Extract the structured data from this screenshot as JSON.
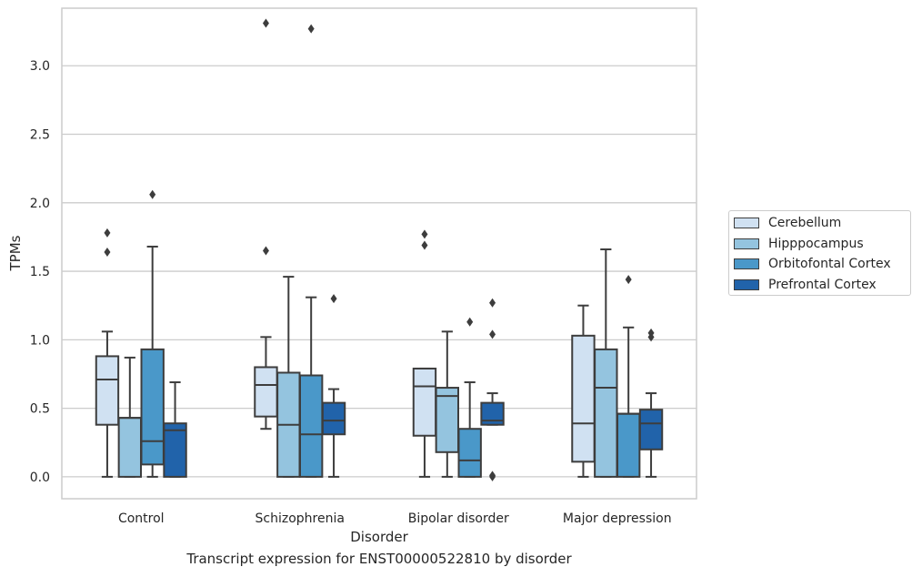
{
  "chart_data": {
    "type": "box",
    "xlabel": "Disorder",
    "ylabel": "TPMs",
    "caption": "Transcript expression for ENST00000522810 by disorder",
    "ylim": [
      -0.16,
      3.42
    ],
    "yticks": [
      "0.0",
      "0.5",
      "1.0",
      "1.5",
      "2.0",
      "2.5",
      "3.0"
    ],
    "categories": [
      "Control",
      "Schizophrenia",
      "Bipolar disorder",
      "Major depression"
    ],
    "grid": true,
    "legend_position": "right",
    "series": [
      {
        "name": "Cerebellum",
        "color": "#d0e1f2",
        "boxes": [
          {
            "whisker_low": 0.0,
            "q1": 0.38,
            "median": 0.71,
            "q3": 0.88,
            "whisker_high": 1.06,
            "outliers": [
              1.64,
              1.78
            ]
          },
          {
            "whisker_low": 0.35,
            "q1": 0.44,
            "median": 0.67,
            "q3": 0.8,
            "whisker_high": 1.02,
            "outliers": [
              1.65,
              3.31
            ]
          },
          {
            "whisker_low": 0.0,
            "q1": 0.3,
            "median": 0.66,
            "q3": 0.79,
            "whisker_high": 0.79,
            "outliers": [
              1.69,
              1.77
            ]
          },
          {
            "whisker_low": 0.0,
            "q1": 0.11,
            "median": 0.39,
            "q3": 1.03,
            "whisker_high": 1.25,
            "outliers": []
          }
        ]
      },
      {
        "name": "Hipppocampus",
        "color": "#94c4df",
        "boxes": [
          {
            "whisker_low": 0.0,
            "q1": 0.0,
            "median": 0.43,
            "q3": 0.43,
            "whisker_high": 0.87,
            "outliers": []
          },
          {
            "whisker_low": 0.0,
            "q1": 0.0,
            "median": 0.38,
            "q3": 0.76,
            "whisker_high": 1.46,
            "outliers": []
          },
          {
            "whisker_low": 0.0,
            "q1": 0.18,
            "median": 0.59,
            "q3": 0.65,
            "whisker_high": 1.06,
            "outliers": []
          },
          {
            "whisker_low": 0.0,
            "q1": 0.0,
            "median": 0.65,
            "q3": 0.93,
            "whisker_high": 1.66,
            "outliers": []
          }
        ]
      },
      {
        "name": "Orbitofontal Cortex",
        "color": "#4a98c9",
        "boxes": [
          {
            "whisker_low": 0.0,
            "q1": 0.09,
            "median": 0.26,
            "q3": 0.93,
            "whisker_high": 1.68,
            "outliers": [
              2.06
            ]
          },
          {
            "whisker_low": 0.0,
            "q1": 0.0,
            "median": 0.31,
            "q3": 0.74,
            "whisker_high": 1.31,
            "outliers": [
              3.27
            ]
          },
          {
            "whisker_low": 0.0,
            "q1": 0.0,
            "median": 0.12,
            "q3": 0.35,
            "whisker_high": 0.69,
            "outliers": [
              1.13
            ]
          },
          {
            "whisker_low": 0.0,
            "q1": 0.0,
            "median": 0.46,
            "q3": 0.46,
            "whisker_high": 1.09,
            "outliers": [
              1.44
            ]
          }
        ]
      },
      {
        "name": "Prefrontal Cortex",
        "color": "#2163aa",
        "boxes": [
          {
            "whisker_low": 0.0,
            "q1": 0.0,
            "median": 0.34,
            "q3": 0.39,
            "whisker_high": 0.69,
            "outliers": []
          },
          {
            "whisker_low": 0.0,
            "q1": 0.31,
            "median": 0.41,
            "q3": 0.54,
            "whisker_high": 0.64,
            "outliers": [
              1.3
            ]
          },
          {
            "whisker_low": 0.38,
            "q1": 0.38,
            "median": 0.41,
            "q3": 0.54,
            "whisker_high": 0.61,
            "outliers": [
              0.0,
              0.01,
              1.04,
              1.27
            ]
          },
          {
            "whisker_low": 0.0,
            "q1": 0.2,
            "median": 0.39,
            "q3": 0.49,
            "whisker_high": 0.61,
            "outliers": [
              1.02,
              1.05
            ]
          }
        ]
      }
    ]
  }
}
